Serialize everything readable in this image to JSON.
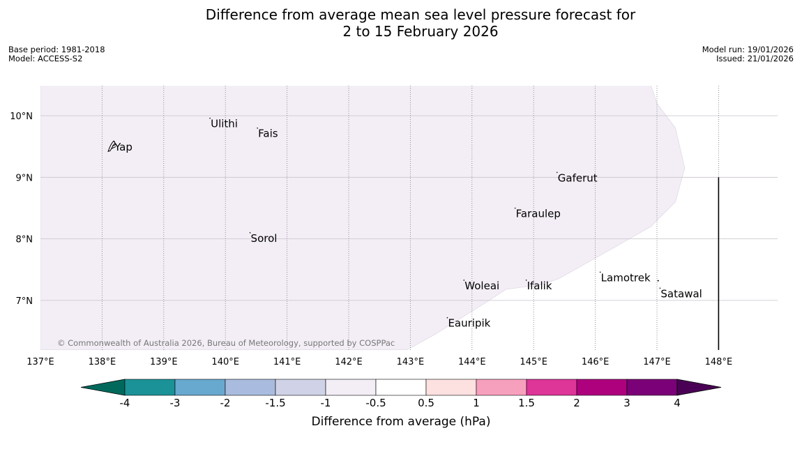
{
  "title": {
    "line1": "Difference from average mean sea level pressure forecast for",
    "line2": "2 to 15 February 2026"
  },
  "meta": {
    "base_period": "Base period: 1981-2018",
    "model": "Model: ACCESS-S2",
    "model_run": "Model run: 19/01/2026",
    "issued": "Issued: 21/01/2026"
  },
  "map": {
    "lon_range": [
      137,
      149
    ],
    "lat_range": [
      6.2,
      10.5
    ],
    "lon_ticks": [
      {
        "value": 137,
        "label": "137°E"
      },
      {
        "value": 138,
        "label": "138°E"
      },
      {
        "value": 139,
        "label": "139°E"
      },
      {
        "value": 140,
        "label": "140°E"
      },
      {
        "value": 141,
        "label": "141°E"
      },
      {
        "value": 142,
        "label": "142°E"
      },
      {
        "value": 143,
        "label": "143°E"
      },
      {
        "value": 144,
        "label": "144°E"
      },
      {
        "value": 145,
        "label": "145°E"
      },
      {
        "value": 146,
        "label": "146°E"
      },
      {
        "value": 147,
        "label": "147°E"
      },
      {
        "value": 148,
        "label": "148°E"
      }
    ],
    "lat_ticks": [
      {
        "value": 10,
        "label": "10°N"
      },
      {
        "value": 9,
        "label": "9°N"
      },
      {
        "value": 8,
        "label": "8°N"
      },
      {
        "value": 7,
        "label": "7°N"
      }
    ],
    "shaded_region": {
      "category": "-1 to -0.5 hPa",
      "color": "#f3eef6",
      "boundary": [
        [
          137,
          10.5
        ],
        [
          146.9,
          10.5
        ],
        [
          147.0,
          10.2
        ],
        [
          147.3,
          9.8
        ],
        [
          147.45,
          9.15
        ],
        [
          147.3,
          8.6
        ],
        [
          146.9,
          8.2
        ],
        [
          146.2,
          7.8
        ],
        [
          145.4,
          7.35
        ],
        [
          145.1,
          7.25
        ],
        [
          144.85,
          7.22
        ],
        [
          144.55,
          7.18
        ],
        [
          144.2,
          6.95
        ],
        [
          143.8,
          6.7
        ],
        [
          143.4,
          6.45
        ],
        [
          142.95,
          6.2
        ],
        [
          137,
          6.2
        ]
      ]
    },
    "islands": [
      {
        "name": "Yap",
        "lon": 138.2,
        "lat": 9.5
      },
      {
        "name": "Ulithi",
        "lon": 139.75,
        "lat": 9.88
      },
      {
        "name": "Fais",
        "lon": 140.52,
        "lat": 9.72
      },
      {
        "name": "Gaferut",
        "lon": 145.38,
        "lat": 9.0
      },
      {
        "name": "Faraulep",
        "lon": 144.7,
        "lat": 8.42
      },
      {
        "name": "Sorol",
        "lon": 140.4,
        "lat": 8.02
      },
      {
        "name": "Lamotrek",
        "lon": 146.08,
        "lat": 7.38
      },
      {
        "name": "Woleai",
        "lon": 143.87,
        "lat": 7.25
      },
      {
        "name": "Ifalik",
        "lon": 144.88,
        "lat": 7.25
      },
      {
        "name": "Satawal",
        "lon": 147.05,
        "lat": 7.12
      },
      {
        "name": "Eauripik",
        "lon": 143.6,
        "lat": 6.64
      }
    ],
    "copyright": "© Commonwealth of Australia 2026, Bureau of Meteorology, supported by COSPPac"
  },
  "colorbar": {
    "label": "Difference from average (hPa)",
    "low_extend_color": "#00695c",
    "high_extend_color": "#4a0055",
    "bins": [
      {
        "from": -4,
        "to": -3,
        "color": "#1b9297"
      },
      {
        "from": -3,
        "to": -2,
        "color": "#68a9d0"
      },
      {
        "from": -2,
        "to": -1.5,
        "color": "#a9bcdf"
      },
      {
        "from": -1.5,
        "to": -1,
        "color": "#d0d3e7"
      },
      {
        "from": -1,
        "to": -0.5,
        "color": "#f3eef6"
      },
      {
        "from": -0.5,
        "to": 0.5,
        "color": "#ffffff"
      },
      {
        "from": 0.5,
        "to": 1,
        "color": "#fde0e0"
      },
      {
        "from": 1,
        "to": 1.5,
        "color": "#f7a0bd"
      },
      {
        "from": 1.5,
        "to": 2,
        "color": "#dd3598"
      },
      {
        "from": 2,
        "to": 3,
        "color": "#ae017e"
      },
      {
        "from": 3,
        "to": 4,
        "color": "#7a0177"
      }
    ],
    "tick_labels": [
      "-4",
      "-3",
      "-2",
      "-1.5",
      "-1",
      "-0.5",
      "0.5",
      "1",
      "1.5",
      "2",
      "3",
      "4"
    ]
  }
}
